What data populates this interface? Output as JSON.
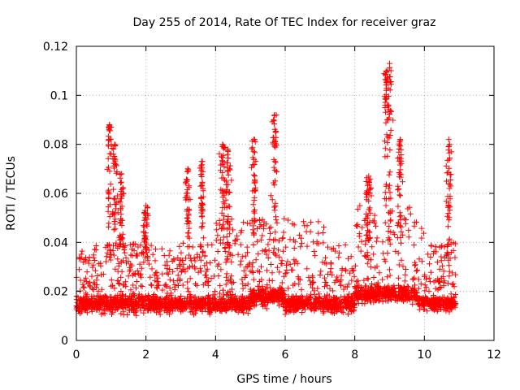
{
  "chart_data": {
    "type": "scatter",
    "title": "Day 255 of 2014, Rate Of TEC Index for receiver graz",
    "xlabel": "GPS time / hours",
    "ylabel": "ROTI / TECUs",
    "xlim": [
      0,
      12
    ],
    "ylim": [
      0,
      0.12
    ],
    "xticks": [
      0,
      2,
      4,
      6,
      8,
      10,
      12
    ],
    "xtick_labels": [
      "0",
      "2",
      "4",
      "6",
      "8",
      "10",
      "12"
    ],
    "yticks": [
      0,
      0.02,
      0.04,
      0.06,
      0.08,
      0.1,
      0.12
    ],
    "ytick_labels": [
      "0",
      "0.02",
      "0.04",
      "0.06",
      "0.08",
      "0.1",
      "0.12"
    ],
    "grid": true,
    "marker": "plus",
    "marker_color": "#ff0000",
    "x_extent": [
      0,
      10.9
    ],
    "baseline_roti": 0.015,
    "peaks": [
      {
        "x": 0.95,
        "y": 0.088
      },
      {
        "x": 1.1,
        "y": 0.08
      },
      {
        "x": 1.3,
        "y": 0.068
      },
      {
        "x": 2.0,
        "y": 0.055
      },
      {
        "x": 3.2,
        "y": 0.07
      },
      {
        "x": 3.6,
        "y": 0.073
      },
      {
        "x": 4.2,
        "y": 0.08
      },
      {
        "x": 4.35,
        "y": 0.078
      },
      {
        "x": 5.1,
        "y": 0.082
      },
      {
        "x": 5.7,
        "y": 0.092
      },
      {
        "x": 8.4,
        "y": 0.067
      },
      {
        "x": 8.9,
        "y": 0.11
      },
      {
        "x": 9.0,
        "y": 0.113
      },
      {
        "x": 9.3,
        "y": 0.082
      },
      {
        "x": 10.7,
        "y": 0.082
      }
    ]
  }
}
